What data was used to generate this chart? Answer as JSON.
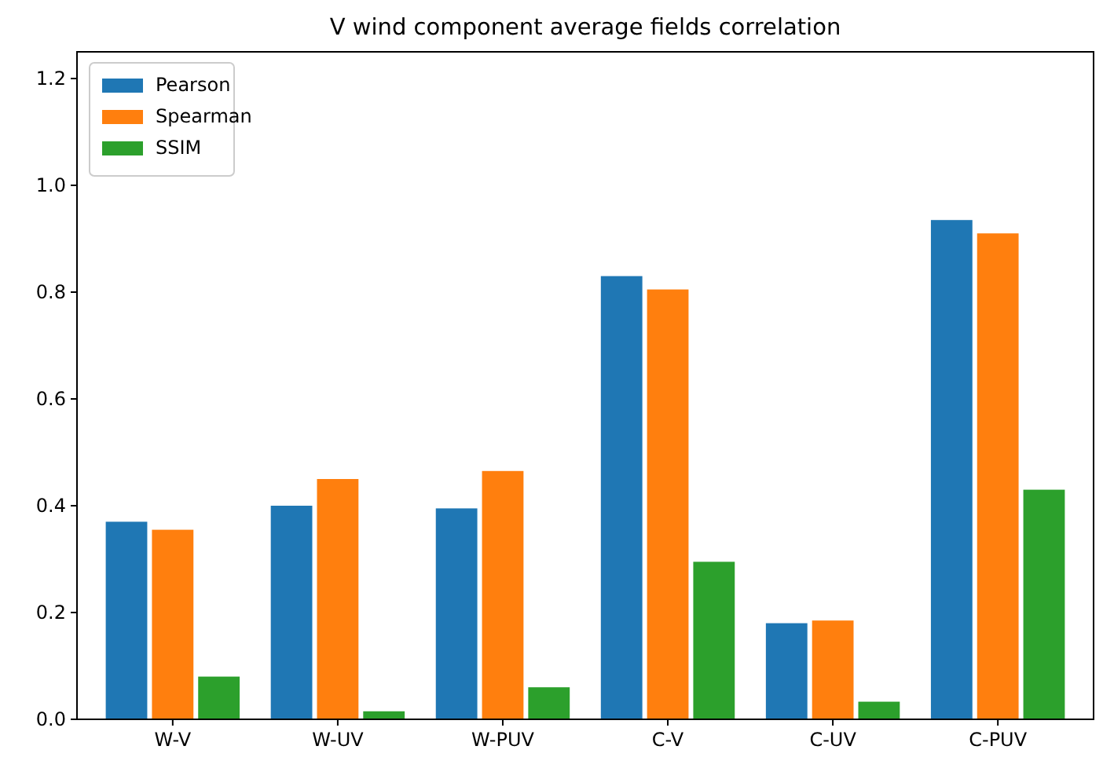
{
  "chart_data": {
    "type": "bar",
    "title": "V wind component average fields correlation",
    "categories": [
      "W-V",
      "W-UV",
      "W-PUV",
      "C-V",
      "C-UV",
      "C-PUV"
    ],
    "series": [
      {
        "name": "Pearson",
        "color": "#1f77b4",
        "values": [
          0.37,
          0.4,
          0.395,
          0.83,
          0.18,
          0.935
        ]
      },
      {
        "name": "Spearman",
        "color": "#ff7f0e",
        "values": [
          0.355,
          0.45,
          0.465,
          0.805,
          0.185,
          0.91
        ]
      },
      {
        "name": "SSIM",
        "color": "#2ca02c",
        "values": [
          0.08,
          0.015,
          0.06,
          0.295,
          0.033,
          0.43
        ]
      }
    ],
    "ylim": [
      0,
      1.25
    ],
    "yticks": [
      {
        "value": 0,
        "label": "0.0"
      },
      {
        "value": 0.2,
        "label": "0.2"
      },
      {
        "value": 0.4,
        "label": "0.4"
      },
      {
        "value": 0.6,
        "label": "0.6"
      },
      {
        "value": 0.8,
        "label": "0.8"
      },
      {
        "value": 1,
        "label": "1.0"
      },
      {
        "value": 1.2,
        "label": "1.2"
      }
    ],
    "legend": "top left",
    "grid": false
  }
}
